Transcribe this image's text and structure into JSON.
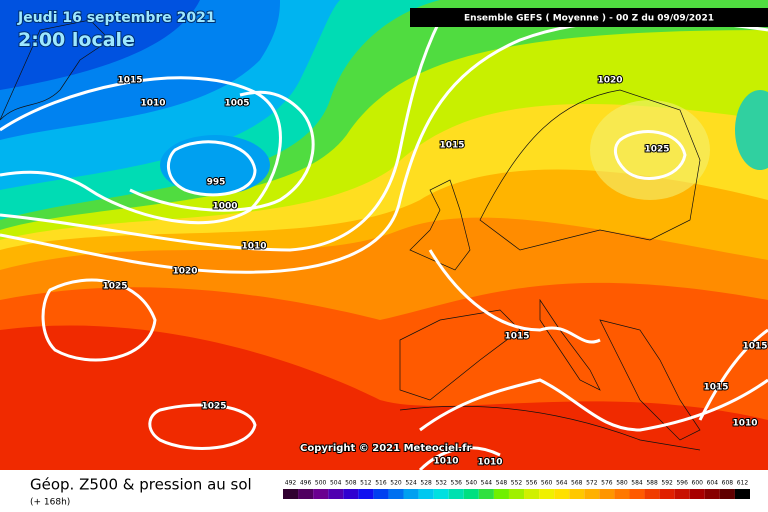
{
  "header": {
    "date": "Jeudi 16 septembre 2021",
    "time": "2:00 locale",
    "run": "Ensemble GEFS  ( Moyenne )  - 00 Z du 09/09/2021"
  },
  "isobar_labels": [
    "1015",
    "1010",
    "1005",
    "995",
    "1000",
    "1010",
    "1020",
    "1025",
    "1025",
    "1015",
    "1020",
    "1025",
    "1015",
    "1015",
    "1015",
    "1010",
    "1010",
    "1010"
  ],
  "copyright": "Copyright © 2021 Meteociel.fr",
  "footer": {
    "title": "Géop. Z500 & pression au sol",
    "lead": "(+ 168h)"
  },
  "scale": {
    "labels": [
      492,
      496,
      500,
      504,
      508,
      512,
      516,
      520,
      524,
      528,
      532,
      536,
      540,
      544,
      548,
      552,
      556,
      560,
      564,
      568,
      572,
      576,
      580,
      584,
      588,
      592,
      596,
      600,
      604,
      608,
      612
    ],
    "colors": [
      "#300030",
      "#500060",
      "#6a0090",
      "#5000b0",
      "#3000d0",
      "#1010f0",
      "#0040f0",
      "#0070f0",
      "#00a0f0",
      "#00c8f0",
      "#00e0e0",
      "#00e0b0",
      "#00e080",
      "#30e040",
      "#70f000",
      "#a0f000",
      "#d0f000",
      "#f0f000",
      "#ffe000",
      "#ffc800",
      "#ffb000",
      "#ff9600",
      "#ff7800",
      "#ff5a00",
      "#f03c00",
      "#e02000",
      "#c81000",
      "#a80000",
      "#880000",
      "#600000",
      "#000000"
    ]
  }
}
